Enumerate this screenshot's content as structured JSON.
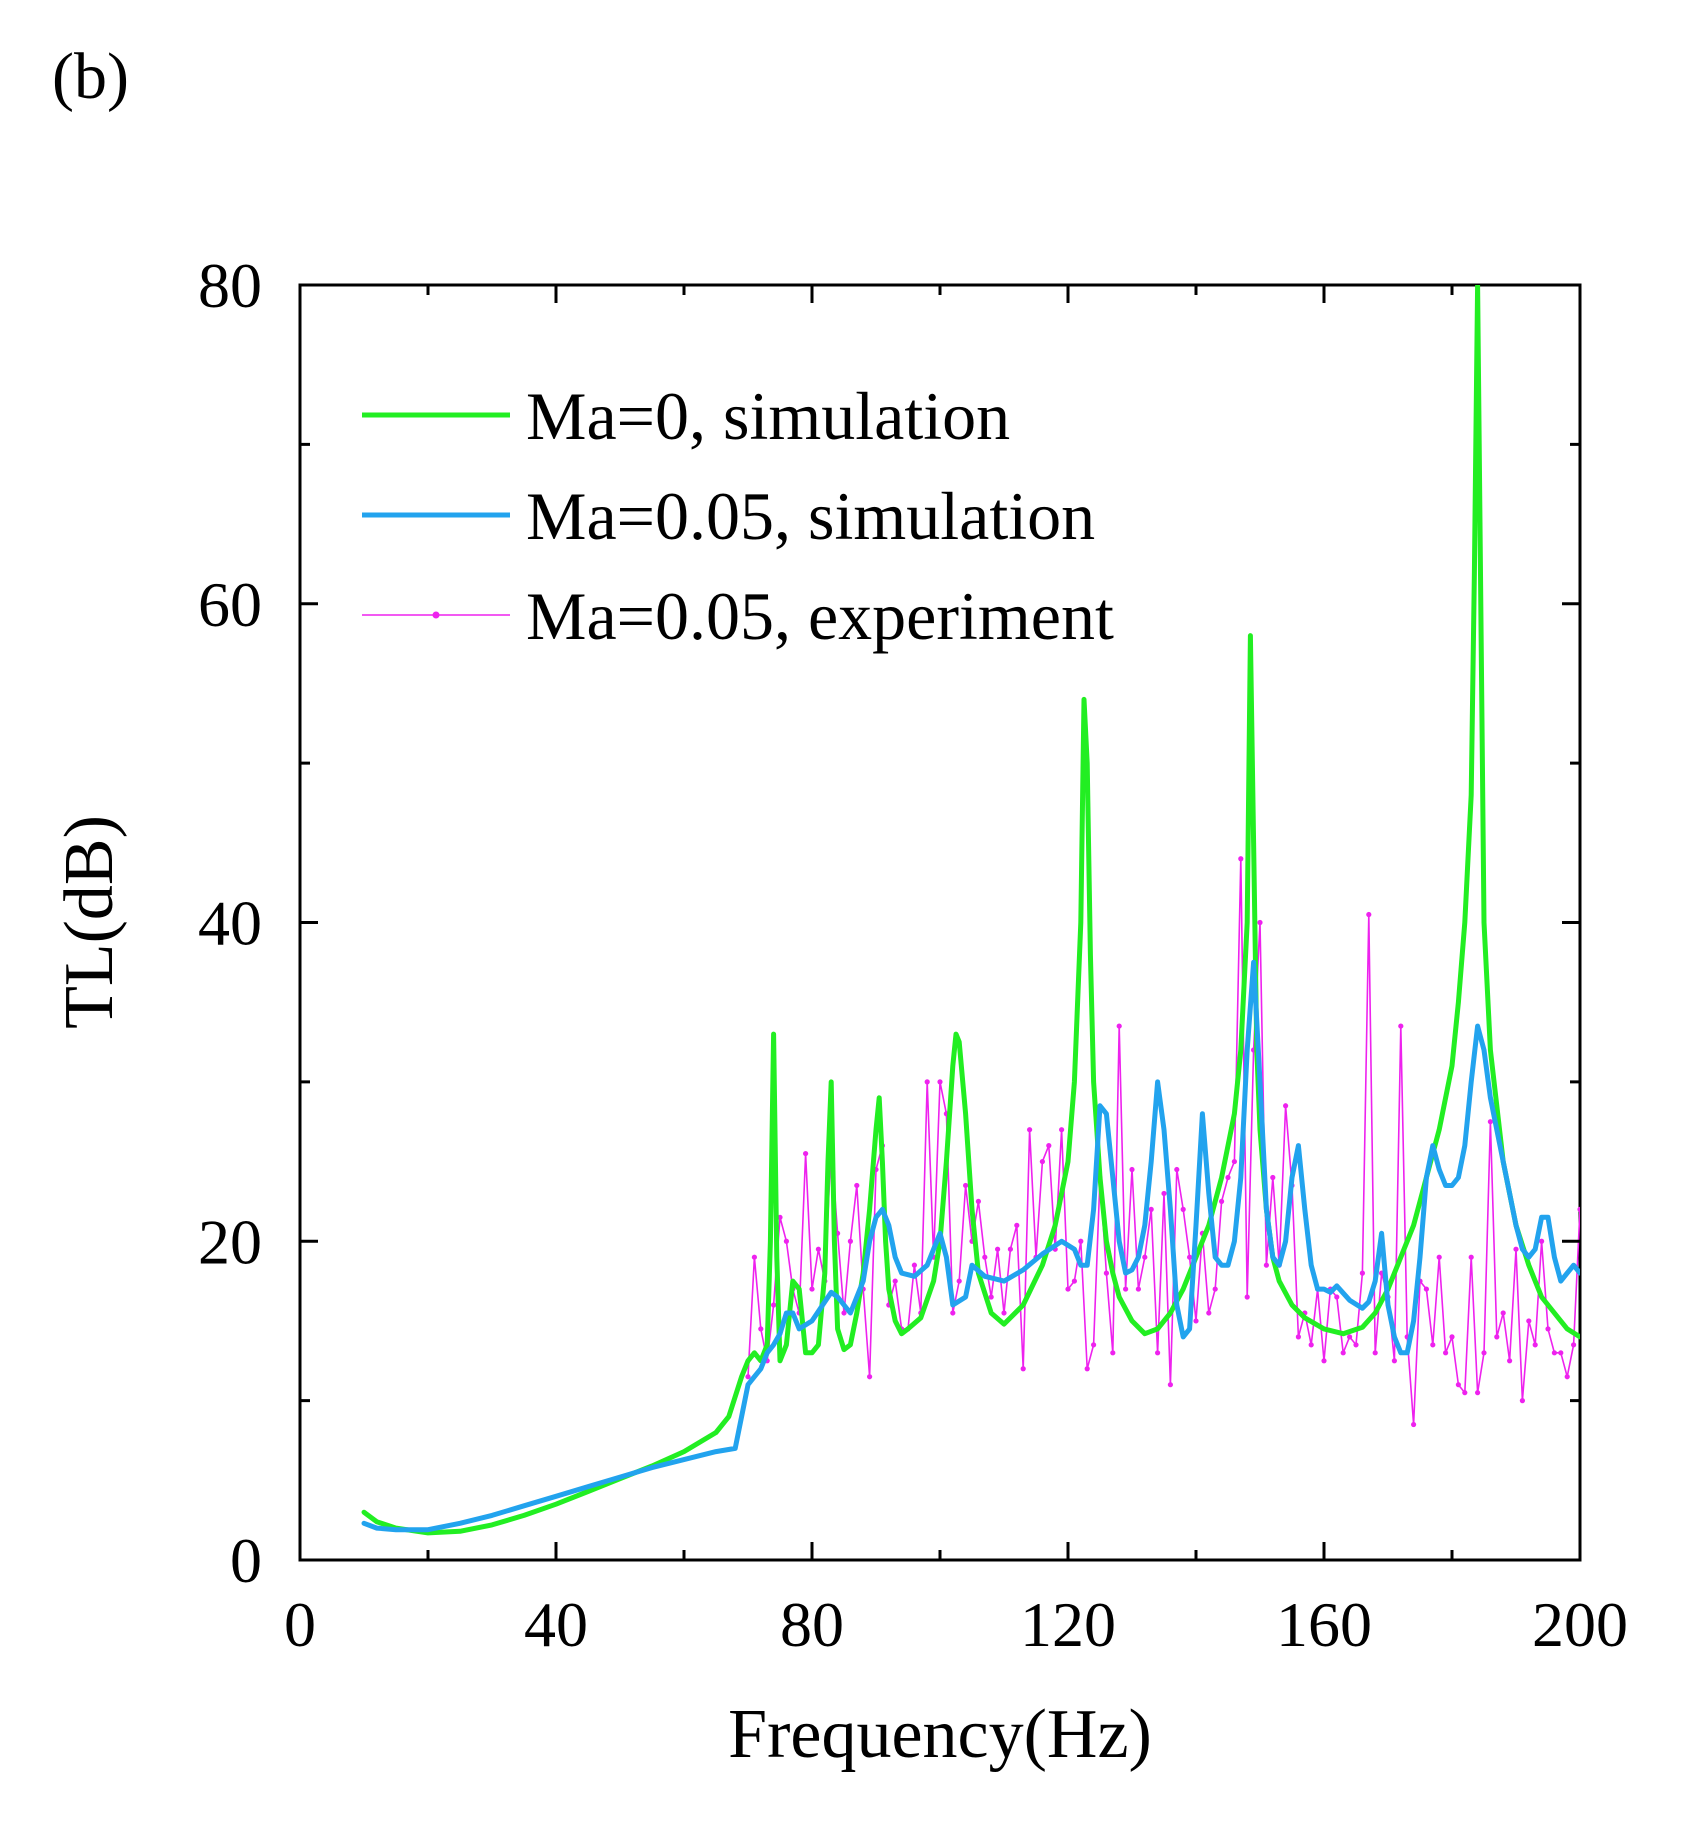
{
  "panel_label": "(b)",
  "chart_data": {
    "type": "line",
    "title": "",
    "xlabel": "Frequency(Hz)",
    "ylabel": "TL(dB)",
    "xlim": [
      0,
      200
    ],
    "ylim": [
      0,
      80
    ],
    "xticks": [
      0,
      40,
      80,
      120,
      160,
      200
    ],
    "yticks": [
      0,
      20,
      40,
      60,
      80
    ],
    "xtick_labels": [
      "0",
      "40",
      "80",
      "120",
      "160",
      "200"
    ],
    "ytick_labels": [
      "0",
      "20",
      "40",
      "60",
      "80"
    ],
    "grid": false,
    "legend_position": "top-left",
    "series": [
      {
        "name": "Ma=0, simulation",
        "color": "#22ee22",
        "style": "line",
        "x": [
          10,
          12,
          15,
          20,
          25,
          30,
          35,
          40,
          45,
          50,
          55,
          60,
          65,
          67,
          69,
          70,
          71,
          72,
          73,
          73.5,
          74,
          74.5,
          75,
          76,
          77,
          78,
          79,
          80,
          81,
          82,
          82.5,
          83,
          83.5,
          84,
          85,
          86,
          87,
          88,
          89,
          90,
          90.5,
          91,
          91.5,
          92,
          93,
          94,
          95,
          97,
          99,
          100,
          101,
          102,
          102.5,
          103,
          104,
          105,
          106,
          108,
          110,
          113,
          116,
          118,
          120,
          121,
          122,
          122.5,
          123,
          123.5,
          124,
          125,
          126,
          127,
          128,
          130,
          132,
          134,
          136,
          138,
          140,
          142,
          144,
          146,
          147,
          148,
          148.5,
          149,
          149.5,
          150,
          151,
          152,
          153,
          155,
          157,
          160,
          163,
          166,
          168,
          170,
          172,
          174,
          176,
          178,
          180,
          181,
          182,
          183,
          183.5,
          184,
          184.5,
          185,
          186,
          188,
          190,
          192,
          194,
          196,
          198,
          200
        ],
        "y": [
          3,
          2.4,
          2,
          1.7,
          1.8,
          2.2,
          2.8,
          3.5,
          4.3,
          5.1,
          5.9,
          6.8,
          8.0,
          9.0,
          11.5,
          12.5,
          13.0,
          12.5,
          13.5,
          20,
          33,
          19,
          12.5,
          13.5,
          17.5,
          17,
          13,
          13,
          13.5,
          18,
          25,
          30,
          20,
          14.5,
          13.2,
          13.5,
          15.5,
          18,
          22,
          27,
          29,
          25,
          20,
          17,
          15,
          14.2,
          14.5,
          15.2,
          17.5,
          20,
          25,
          31,
          33,
          32.5,
          28,
          22,
          18,
          15.5,
          14.8,
          16,
          18.5,
          21,
          25,
          30,
          40,
          54,
          50,
          38,
          30,
          24,
          20,
          18,
          16.5,
          15,
          14.2,
          14.5,
          15.5,
          17,
          19,
          21,
          24,
          28,
          32,
          40,
          58,
          45,
          32,
          27,
          22,
          19,
          17.5,
          16,
          15.2,
          14.5,
          14.2,
          14.6,
          15.5,
          17,
          19,
          21,
          24,
          27,
          31,
          35,
          40,
          48,
          62,
          80,
          60,
          40,
          32,
          25,
          21,
          18.5,
          16.5,
          15.5,
          14.5,
          14
        ]
      },
      {
        "name": "Ma=0.05, simulation",
        "color": "#22a3ee",
        "style": "line",
        "x": [
          10,
          12,
          15,
          20,
          25,
          30,
          35,
          40,
          45,
          50,
          55,
          60,
          65,
          68,
          69,
          70,
          71,
          72,
          73,
          74,
          75,
          76,
          77,
          78,
          80,
          82,
          83,
          84,
          86,
          88,
          89,
          90,
          91,
          92,
          93,
          94,
          96,
          98,
          99,
          100,
          101,
          102,
          104,
          105,
          107,
          110,
          113,
          116,
          119,
          121,
          122,
          123,
          124,
          125,
          126,
          127,
          128,
          129,
          130,
          131,
          132,
          133,
          134,
          135,
          136,
          137,
          138,
          139,
          140,
          141,
          142,
          143,
          144,
          145,
          146,
          147,
          148,
          149,
          150,
          151,
          152,
          153,
          154,
          155,
          156,
          157,
          158,
          159,
          160,
          161,
          162,
          164,
          166,
          167,
          168,
          169,
          170,
          171,
          172,
          173,
          174,
          175,
          176,
          177,
          178,
          179,
          180,
          181,
          182,
          183,
          184,
          185,
          186,
          187,
          188,
          189,
          190,
          191,
          192,
          193,
          194,
          195,
          196,
          197,
          198,
          199,
          200
        ],
        "y": [
          2.3,
          2.0,
          1.9,
          1.9,
          2.3,
          2.8,
          3.4,
          4.0,
          4.6,
          5.2,
          5.8,
          6.3,
          6.8,
          7.0,
          9.0,
          11,
          11.5,
          12,
          13,
          13.5,
          14.2,
          15.5,
          15.5,
          14.5,
          15,
          16.2,
          16.8,
          16.5,
          15.5,
          17.5,
          20,
          21.5,
          22,
          21,
          19,
          18,
          17.8,
          18.5,
          19.5,
          20.5,
          19,
          16,
          16.5,
          18.5,
          17.8,
          17.5,
          18.2,
          19.2,
          20,
          19.5,
          18.5,
          18.5,
          22,
          28.5,
          28,
          24,
          20,
          18,
          18.2,
          19,
          21,
          25,
          30,
          27,
          22,
          16,
          14,
          14.5,
          21,
          28,
          23,
          19,
          18.5,
          18.5,
          20,
          24,
          32,
          37.5,
          30,
          22,
          19,
          18.5,
          20,
          24,
          26,
          22,
          18.5,
          17,
          17,
          16.8,
          17.2,
          16.3,
          15.8,
          16.2,
          17.5,
          20.5,
          16,
          14,
          13,
          13,
          15,
          19,
          24,
          26,
          24.5,
          23.5,
          23.5,
          24,
          26,
          30,
          33.5,
          32,
          29,
          27,
          25,
          23,
          21,
          19.5,
          19,
          19.5,
          21.5,
          21.5,
          19,
          17.5,
          18,
          18.5,
          18
        ]
      },
      {
        "name": "Ma=0.05, experiment",
        "color": "#ee22ee",
        "style": "line-marker",
        "x": [
          70,
          71,
          72,
          73,
          74,
          75,
          76,
          77,
          78,
          79,
          80,
          81,
          82,
          83,
          84,
          85,
          86,
          87,
          88,
          89,
          90,
          91,
          92,
          93,
          94,
          95,
          96,
          97,
          98,
          99,
          100,
          101,
          102,
          103,
          104,
          105,
          106,
          107,
          108,
          109,
          110,
          111,
          112,
          113,
          114,
          115,
          116,
          117,
          118,
          119,
          120,
          121,
          122,
          123,
          124,
          125,
          126,
          127,
          128,
          129,
          130,
          131,
          132,
          133,
          134,
          135,
          136,
          137,
          138,
          139,
          140,
          141,
          142,
          143,
          144,
          145,
          146,
          147,
          148,
          149,
          150,
          151,
          152,
          153,
          154,
          155,
          156,
          157,
          158,
          159,
          160,
          161,
          162,
          163,
          164,
          165,
          166,
          167,
          168,
          169,
          170,
          171,
          172,
          173,
          174,
          175,
          176,
          177,
          178,
          179,
          180,
          181,
          182,
          183,
          184,
          185,
          186,
          187,
          188,
          189,
          190,
          191,
          192,
          193,
          194,
          195,
          196,
          197,
          198,
          199,
          200
        ],
        "y": [
          11.5,
          19,
          14.5,
          12.5,
          16,
          21.5,
          20,
          17,
          15.5,
          25.5,
          17,
          19.5,
          17.5,
          26,
          20.5,
          15.5,
          20,
          23.5,
          17,
          11.5,
          24.5,
          26,
          16,
          17.5,
          14.5,
          14.5,
          18.5,
          15.5,
          30,
          19,
          30,
          28,
          15.5,
          17.5,
          23.5,
          20,
          22.5,
          19,
          16.5,
          19.5,
          15.5,
          19.5,
          21,
          12,
          27,
          19,
          25,
          26,
          19.5,
          27,
          17,
          17.5,
          20,
          12,
          13.5,
          24,
          18,
          13,
          33.5,
          17,
          24.5,
          17,
          19,
          22,
          13,
          23,
          11,
          24.5,
          22,
          19,
          15,
          20.5,
          15.5,
          17,
          22.5,
          24,
          25,
          44,
          16.5,
          32,
          40,
          18.5,
          24,
          18.5,
          28.5,
          23.5,
          14,
          15.5,
          13.5,
          17,
          12.5,
          17,
          16.5,
          13,
          14,
          13.5,
          18,
          40.5,
          13,
          18,
          16.5,
          12.5,
          33.5,
          14,
          8.5,
          17.5,
          17,
          13.5,
          19,
          13,
          14,
          11,
          10.5,
          19,
          10.5,
          13,
          27.5,
          14,
          15.5,
          12.5,
          19.5,
          10,
          15,
          13.5,
          20,
          14.5,
          13,
          13,
          11.5,
          13.5,
          22
        ]
      }
    ]
  }
}
